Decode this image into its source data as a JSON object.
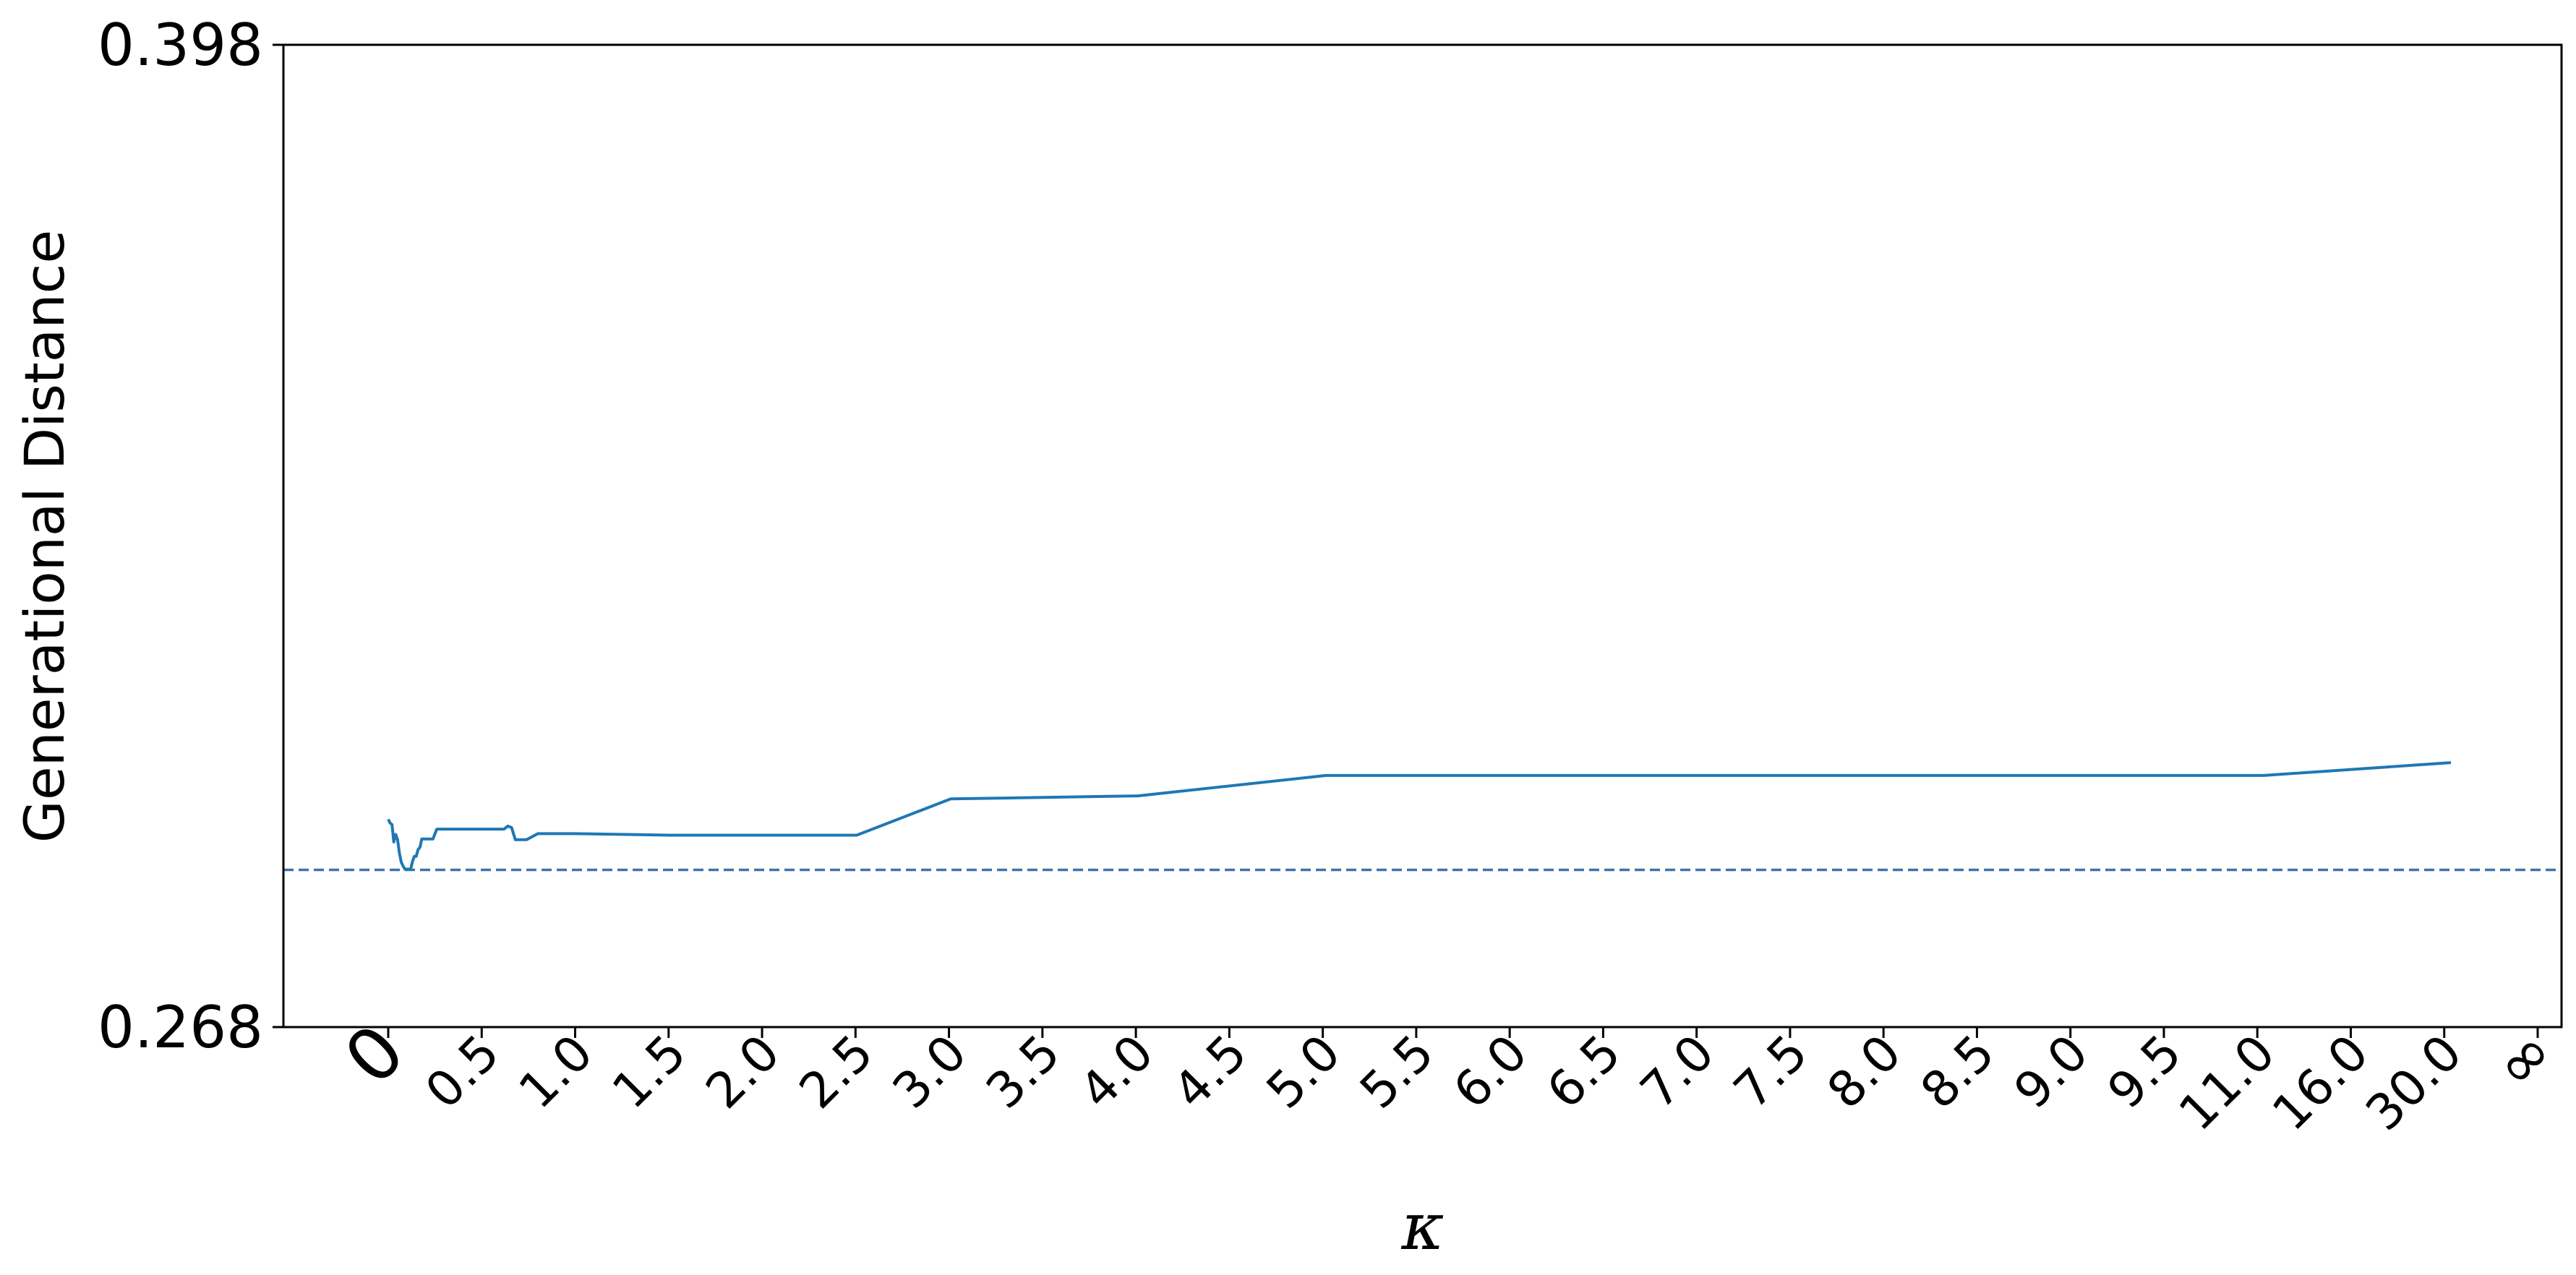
{
  "chart_data": {
    "type": "line",
    "title": "",
    "xlabel": "κ",
    "ylabel": "Generational Distance",
    "ylim": [
      0.268,
      0.398
    ],
    "yticks": [
      "0.268",
      "0.398"
    ],
    "xticks": [
      "0",
      "0.5",
      "1.0",
      "1.5",
      "2.0",
      "2.5",
      "3.0",
      "3.5",
      "4.0",
      "4.5",
      "5.0",
      "5.5",
      "6.0",
      "6.5",
      "7.0",
      "7.5",
      "8.0",
      "8.5",
      "9.0",
      "9.5",
      "11.0",
      "16.0",
      "30.0",
      "∞"
    ],
    "grid": false,
    "legend": "none",
    "colors": {
      "line": "#1f77b4",
      "reference": "#3b75af",
      "axes": "#000000"
    },
    "series": [
      {
        "x": [
          0,
          0.01,
          0.02,
          0.03,
          0.04,
          0.05,
          0.06,
          0.07,
          0.08,
          0.09,
          0.1,
          0.11,
          0.12,
          0.13,
          0.14,
          0.15,
          0.16,
          0.17,
          0.18,
          0.2,
          0.22,
          0.24,
          0.26,
          0.28,
          0.3,
          0.4,
          0.5,
          0.6,
          0.62,
          0.64,
          0.66,
          0.68,
          0.7,
          0.72,
          0.74,
          0.8,
          1.0,
          1.5,
          2.0,
          2.5,
          3.0,
          4.0,
          5.0,
          5.5,
          6.0,
          6.5,
          7.0,
          7.5,
          8.0,
          8.5,
          9.0,
          9.5,
          11.0,
          16.0
        ],
        "values": [
          0.2955,
          0.295,
          0.2948,
          0.2925,
          0.2935,
          0.2928,
          0.291,
          0.2898,
          0.2893,
          0.2889,
          0.2889,
          0.2889,
          0.2889,
          0.2899,
          0.2906,
          0.2906,
          0.2915,
          0.2918,
          0.2929,
          0.2929,
          0.2929,
          0.2929,
          0.2942,
          0.2942,
          0.2942,
          0.2942,
          0.2942,
          0.2942,
          0.2942,
          0.2946,
          0.2944,
          0.2928,
          0.2928,
          0.2928,
          0.2928,
          0.2936,
          0.2936,
          0.2934,
          0.2934,
          0.2934,
          0.2982,
          0.2986,
          0.3013,
          0.3013,
          0.3013,
          0.3013,
          0.3013,
          0.3013,
          0.3013,
          0.3013,
          0.3013,
          0.3013,
          0.3013,
          0.303
        ]
      }
    ],
    "reference_line": {
      "y": 0.2888,
      "style": "dashed"
    }
  }
}
